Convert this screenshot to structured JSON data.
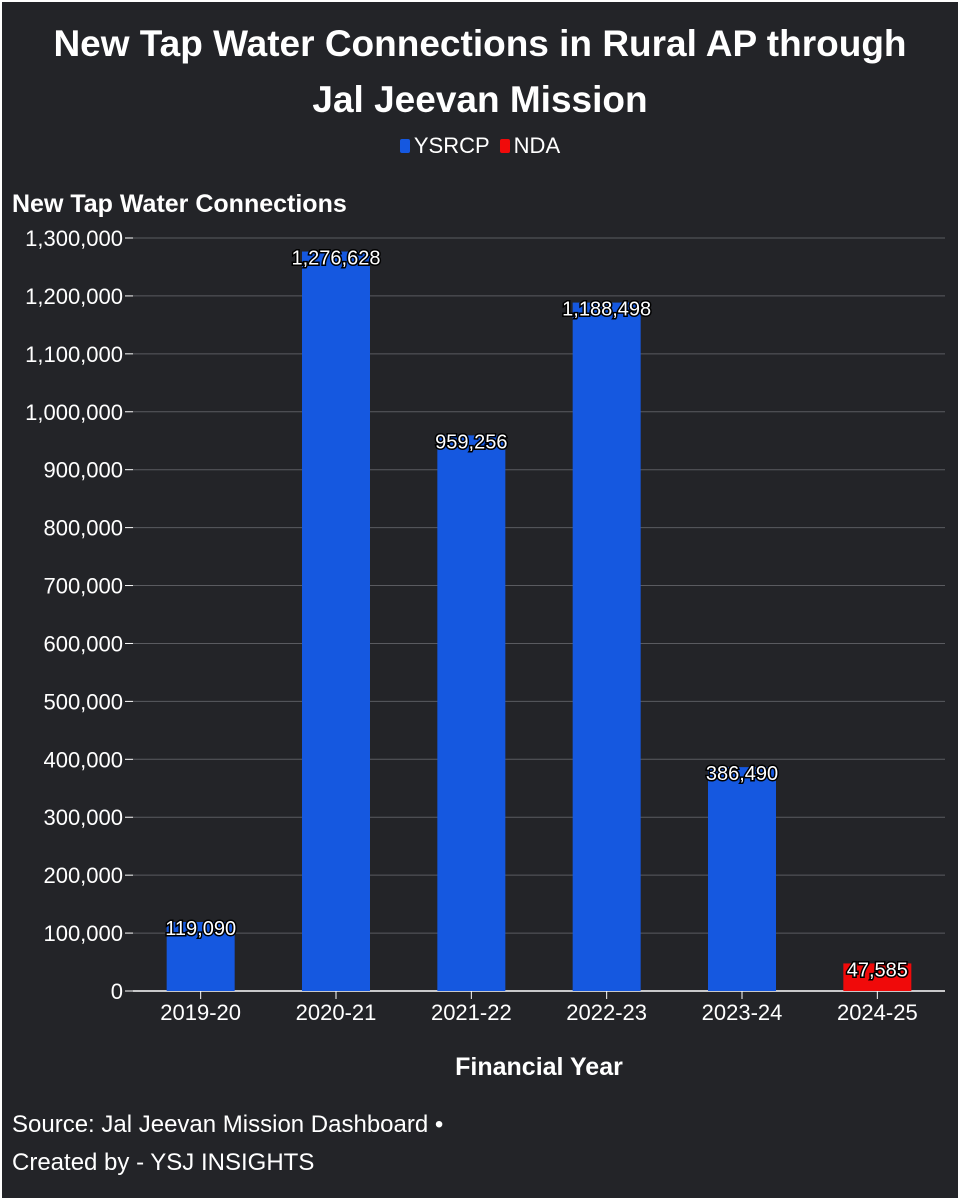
{
  "chart_data": {
    "type": "bar",
    "title": "New Tap Water Connections in Rural AP through Jal Jeevan Mission",
    "title_lines": [
      "New Tap Water Connections in Rural AP through",
      "Jal Jeevan Mission"
    ],
    "xlabel": "Financial Year",
    "ylabel": "New Tap Water Connections",
    "ylim": [
      0,
      1300000
    ],
    "yticks": [
      0,
      100000,
      200000,
      300000,
      400000,
      500000,
      600000,
      700000,
      800000,
      900000,
      1000000,
      1100000,
      1200000,
      1300000
    ],
    "grid": true,
    "legend": [
      {
        "name": "YSRCP",
        "color": "#1558e0"
      },
      {
        "name": "NDA",
        "color": "#f00a0a"
      }
    ],
    "categories": [
      "2019-20",
      "2020-21",
      "2021-22",
      "2022-23",
      "2023-24",
      "2024-25"
    ],
    "values": [
      119090,
      1276628,
      959256,
      1188498,
      386490,
      47585
    ],
    "series_of": [
      "YSRCP",
      "YSRCP",
      "YSRCP",
      "YSRCP",
      "YSRCP",
      "NDA"
    ]
  },
  "source": {
    "line1": "Source: Jal Jeevan Mission Dashboard •",
    "line2": "Created by - YSJ INSIGHTS"
  }
}
